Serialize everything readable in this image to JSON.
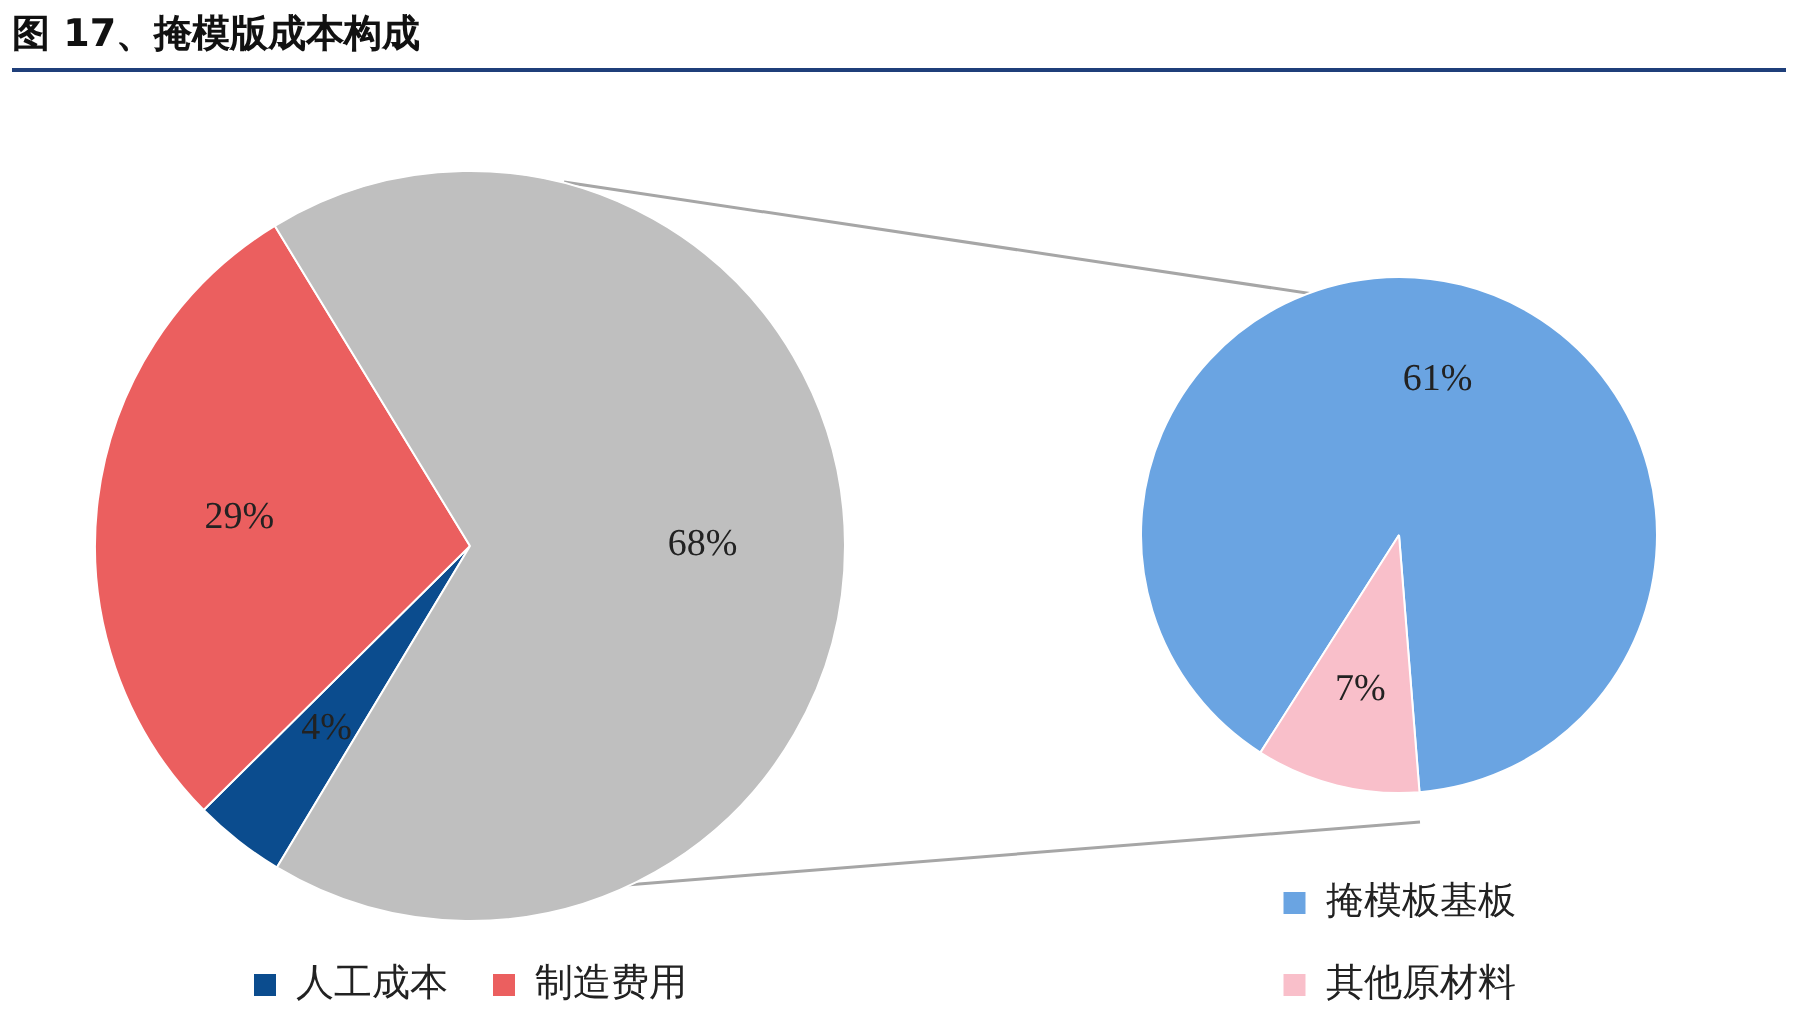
{
  "chart_data": [
    {
      "type": "pie",
      "title": "图 17、掩模版成本构成",
      "categories": [
        "人工成本",
        "制造费用",
        null
      ],
      "values": [
        4,
        29,
        68
      ],
      "colors": [
        "#0b4c8e",
        "#eb5f5f",
        "#bfbfbf"
      ],
      "value_labels": [
        "4%",
        "29%",
        "68%"
      ],
      "legend": "bottom"
    },
    {
      "type": "pie",
      "categories": [
        "掩模板基板",
        "其他原材料"
      ],
      "values": [
        61,
        7
      ],
      "colors": [
        "#6aa4e2",
        "#f9bfca"
      ],
      "value_labels": [
        "61%",
        "7%"
      ],
      "legend": "bottom"
    }
  ]
}
